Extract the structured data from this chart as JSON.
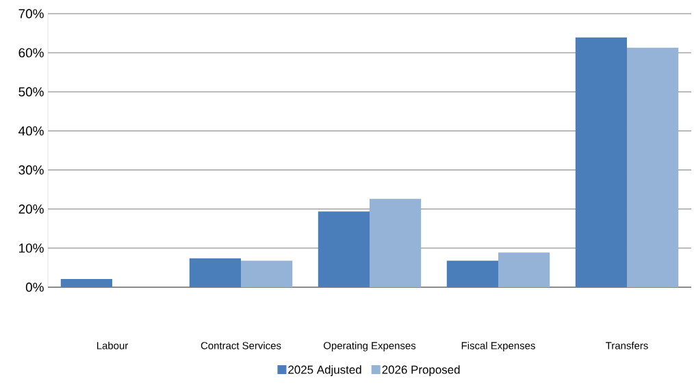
{
  "chart_data": {
    "type": "bar",
    "categories": [
      "Labour",
      "Contract Services",
      "Operating Expenses",
      "Fiscal Expenses",
      "Transfers"
    ],
    "series": [
      {
        "name": "2025 Adjusted",
        "color": "#4a7ebb",
        "values": [
          2.1,
          7.4,
          19.4,
          6.8,
          63.9
        ]
      },
      {
        "name": "2026 Proposed",
        "color": "#95b3d7",
        "values": [
          0,
          6.8,
          22.6,
          8.9,
          61.3
        ]
      }
    ],
    "ylim": [
      0,
      70
    ],
    "yticks": [
      {
        "value": 0,
        "label": "0%"
      },
      {
        "value": 10,
        "label": "10%"
      },
      {
        "value": 20,
        "label": "20%"
      },
      {
        "value": 30,
        "label": "30%"
      },
      {
        "value": 40,
        "label": "40%"
      },
      {
        "value": 50,
        "label": "50%"
      },
      {
        "value": 60,
        "label": "60%"
      },
      {
        "value": 70,
        "label": "70%"
      }
    ],
    "grid": "y",
    "legend": "bottom"
  }
}
